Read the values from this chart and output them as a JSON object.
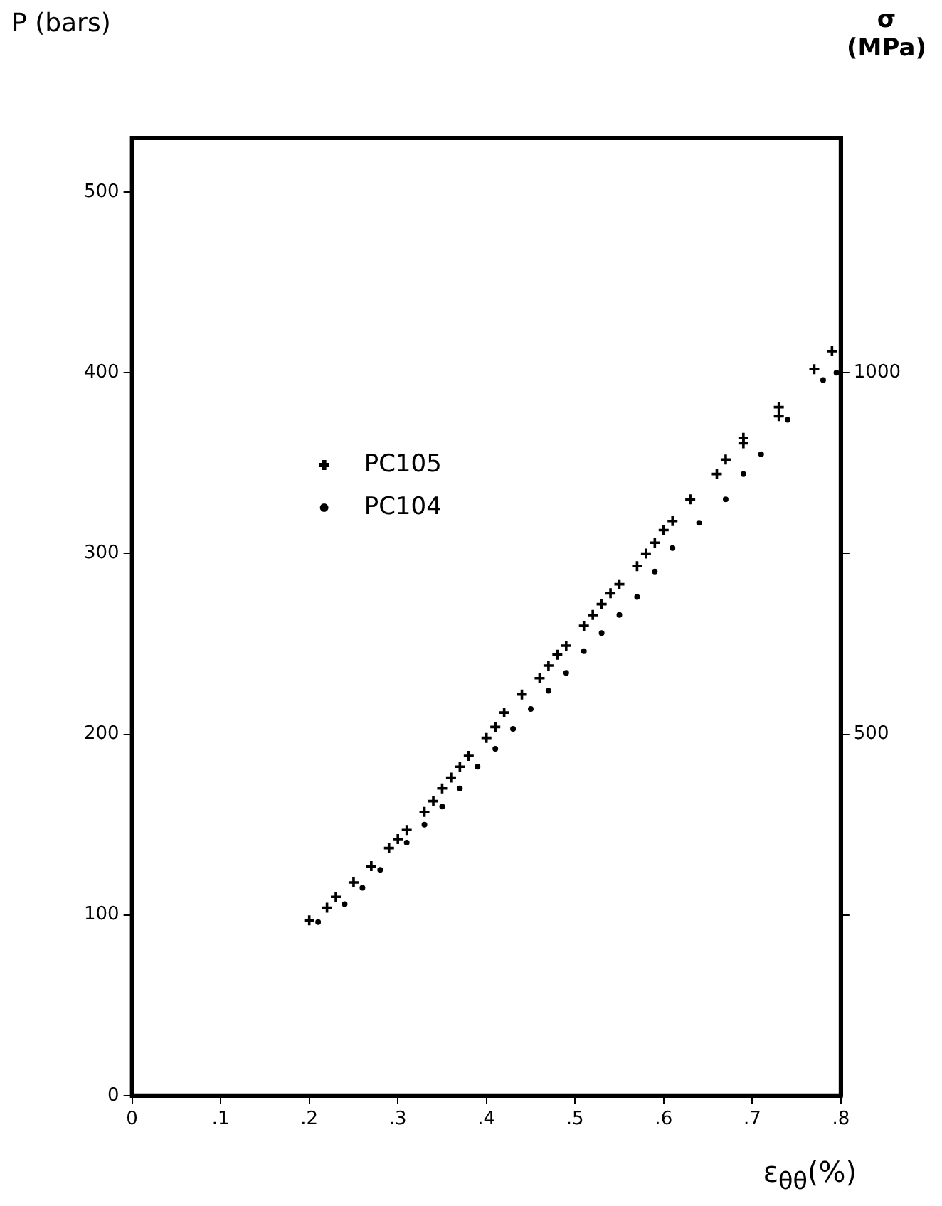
{
  "chart_data": {
    "type": "scatter",
    "xlabel": "ε$_{θθ}$(%)",
    "ylabel": "P (bars)",
    "y2label": "σ (MPa)",
    "xlim": [
      0,
      0.8
    ],
    "xticks": [
      0,
      {
        "value": 0.1,
        "label": ".1"
      },
      {
        "value": 0.2,
        "label": ".2"
      },
      {
        "value": 0.3,
        "label": ".3"
      },
      {
        "value": 0.4,
        "label": ".4"
      },
      {
        "value": 0.5,
        "label": ".5"
      },
      {
        "value": 0.6,
        "label": ".6"
      },
      {
        "value": 0.7,
        "label": ".7"
      },
      {
        "value": 0.8,
        "label": ".8"
      }
    ],
    "ylim": [
      0,
      530
    ],
    "yticks": [
      0,
      100,
      200,
      300,
      400,
      500
    ],
    "y2lim": [
      0,
      1325
    ],
    "y2ticks": [
      {
        "value": 250,
        "label": null
      },
      500,
      {
        "value": 750,
        "label": null
      },
      1000
    ],
    "grid": false,
    "legend": "top left",
    "series": [
      {
        "name": "PC105",
        "color": "#000000",
        "marker": "cross",
        "x": [
          0.2,
          0.22,
          0.23,
          0.25,
          0.27,
          0.29,
          0.3,
          0.31,
          0.33,
          0.34,
          0.35,
          0.36,
          0.37,
          0.38,
          0.4,
          0.41,
          0.42,
          0.44,
          0.46,
          0.47,
          0.48,
          0.49,
          0.51,
          0.52,
          0.53,
          0.54,
          0.55,
          0.57,
          0.58,
          0.59,
          0.6,
          0.61,
          0.63,
          0.66,
          0.67,
          0.69,
          0.69,
          0.73,
          0.73,
          0.77,
          0.79
        ],
        "values": [
          97,
          104,
          110,
          118,
          127,
          137,
          142,
          147,
          157,
          163,
          170,
          176,
          182,
          188,
          198,
          204,
          212,
          222,
          231,
          238,
          244,
          249,
          260,
          266,
          272,
          278,
          283,
          293,
          300,
          306,
          313,
          318,
          330,
          344,
          352,
          361,
          364,
          381,
          376,
          402,
          412
        ]
      },
      {
        "name": "PC104",
        "color": "#000000",
        "marker": "circle",
        "x": [
          0.21,
          0.24,
          0.26,
          0.28,
          0.31,
          0.33,
          0.35,
          0.37,
          0.39,
          0.41,
          0.43,
          0.45,
          0.47,
          0.49,
          0.51,
          0.53,
          0.55,
          0.57,
          0.59,
          0.61,
          0.64,
          0.67,
          0.69,
          0.71,
          0.74,
          0.78,
          0.795
        ],
        "values": [
          96,
          106,
          115,
          125,
          140,
          150,
          160,
          170,
          182,
          192,
          203,
          214,
          224,
          234,
          246,
          256,
          266,
          276,
          290,
          303,
          317,
          330,
          344,
          355,
          374,
          396,
          400
        ]
      }
    ]
  }
}
